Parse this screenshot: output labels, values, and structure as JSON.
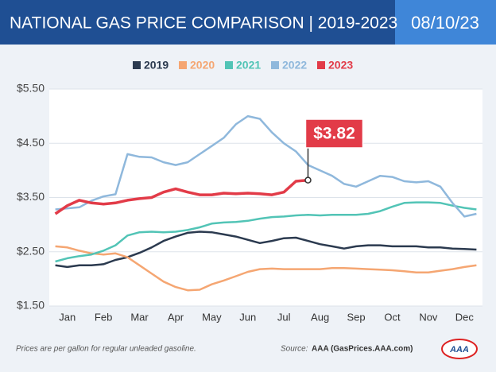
{
  "header": {
    "title": "NATIONAL GAS PRICE COMPARISON | 2019-2023",
    "date": "08/10/23"
  },
  "chart_data": {
    "type": "line",
    "categories": [
      null,
      "Jan",
      null,
      null,
      "Feb",
      null,
      null,
      "Mar",
      null,
      null,
      "Apr",
      null,
      null,
      "May",
      null,
      null,
      "Jun",
      null,
      null,
      "Jul",
      null,
      null,
      "Aug",
      null,
      null,
      "Sep",
      null,
      null,
      "Oct",
      null,
      null,
      "Nov",
      null,
      null,
      "Dec",
      null
    ],
    "ylim": [
      1.5,
      5.5
    ],
    "yticks": [
      {
        "value": 1.5,
        "label": "$1.50"
      },
      {
        "value": 2.5,
        "label": "$2.50"
      },
      {
        "value": 3.5,
        "label": "$3.50"
      },
      {
        "value": 4.5,
        "label": "$4.50"
      },
      {
        "value": 5.5,
        "label": "$5.50"
      }
    ],
    "grid": true,
    "series": [
      {
        "name": "2019",
        "color": "#2b3a4f",
        "values": [
          2.25,
          2.22,
          2.25,
          2.25,
          2.27,
          2.35,
          2.4,
          2.48,
          2.58,
          2.7,
          2.78,
          2.85,
          2.87,
          2.86,
          2.82,
          2.78,
          2.72,
          2.66,
          2.7,
          2.75,
          2.76,
          2.7,
          2.64,
          2.6,
          2.56,
          2.6,
          2.62,
          2.62,
          2.6,
          2.6,
          2.6,
          2.58,
          2.58,
          2.56,
          2.55,
          2.54
        ]
      },
      {
        "name": "2020",
        "color": "#f5a672",
        "values": [
          2.6,
          2.58,
          2.52,
          2.47,
          2.45,
          2.47,
          2.4,
          2.25,
          2.1,
          1.95,
          1.85,
          1.79,
          1.8,
          1.9,
          1.97,
          2.05,
          2.13,
          2.18,
          2.19,
          2.18,
          2.18,
          2.18,
          2.18,
          2.2,
          2.2,
          2.19,
          2.18,
          2.17,
          2.16,
          2.14,
          2.12,
          2.12,
          2.15,
          2.18,
          2.22,
          2.25
        ]
      },
      {
        "name": "2021",
        "color": "#52c4b6",
        "values": [
          2.32,
          2.38,
          2.42,
          2.45,
          2.52,
          2.62,
          2.8,
          2.86,
          2.87,
          2.86,
          2.87,
          2.9,
          2.95,
          3.02,
          3.04,
          3.05,
          3.07,
          3.11,
          3.14,
          3.15,
          3.17,
          3.18,
          3.17,
          3.18,
          3.18,
          3.18,
          3.2,
          3.25,
          3.33,
          3.4,
          3.41,
          3.41,
          3.4,
          3.35,
          3.31,
          3.28
        ]
      },
      {
        "name": "2022",
        "color": "#8fb8dc",
        "values": [
          3.28,
          3.3,
          3.32,
          3.44,
          3.52,
          3.56,
          4.3,
          4.25,
          4.24,
          4.15,
          4.1,
          4.15,
          4.3,
          4.45,
          4.6,
          4.85,
          5.0,
          4.95,
          4.7,
          4.5,
          4.35,
          4.1,
          4.0,
          3.9,
          3.75,
          3.7,
          3.8,
          3.9,
          3.88,
          3.8,
          3.78,
          3.8,
          3.7,
          3.4,
          3.15,
          3.2
        ]
      },
      {
        "name": "2023",
        "color": "#e23b48",
        "values": [
          3.2,
          3.35,
          3.45,
          3.4,
          3.38,
          3.4,
          3.45,
          3.48,
          3.5,
          3.6,
          3.66,
          3.6,
          3.55,
          3.55,
          3.58,
          3.57,
          3.58,
          3.57,
          3.55,
          3.6,
          3.8,
          3.82,
          null,
          null,
          null,
          null,
          null,
          null,
          null,
          null,
          null,
          null,
          null,
          null,
          null,
          null
        ],
        "value_labels": [
          null,
          null,
          null,
          null,
          null,
          null,
          null,
          null,
          null,
          null,
          null,
          null,
          null,
          null,
          null,
          null,
          null,
          null,
          null,
          null,
          null,
          "$3.82",
          null,
          null,
          null,
          null,
          null,
          null,
          null,
          null,
          null,
          null,
          null,
          null,
          null,
          null
        ]
      }
    ]
  },
  "footer": {
    "note": "Prices are per gallon for regular unleaded gasoline.",
    "source_label": "Source:",
    "source": "AAA (GasPrices.AAA.com)",
    "logo": "AAA"
  }
}
